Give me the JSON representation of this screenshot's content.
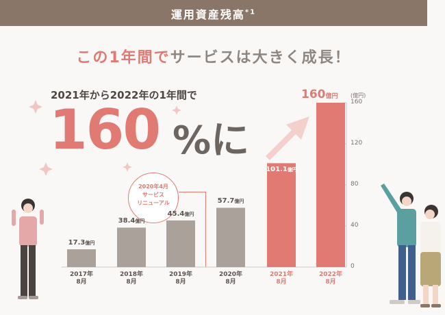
{
  "header": {
    "title": "運用資産残高",
    "footnote": "*1"
  },
  "headline": {
    "part1": "この1年間で",
    "part2": "サービスは大きく成長！"
  },
  "hero": {
    "subtitle": "2021年から2022年の1年間で",
    "percent": "160",
    "percent_suffix": "%に"
  },
  "annotation": {
    "line1": "2020年4月",
    "line2": "サービス",
    "line3": "リニューアル"
  },
  "highlight_value": "160",
  "highlight_unit": "億円",
  "colors": {
    "grey": "#aaa19a",
    "red": "#e07a72",
    "header": "#8a7569"
  },
  "chart_data": {
    "type": "bar",
    "categories": [
      "2017年8月",
      "2018年8月",
      "2019年8月",
      "2020年8月",
      "2021年8月",
      "2022年8月"
    ],
    "category_lines": [
      [
        "2017年",
        "8月"
      ],
      [
        "2018年",
        "8月"
      ],
      [
        "2019年",
        "8月"
      ],
      [
        "2020年",
        "8月"
      ],
      [
        "2021年",
        "8月"
      ],
      [
        "2022年",
        "8月"
      ]
    ],
    "values": [
      17.3,
      38.4,
      45.4,
      57.7,
      101.1,
      160
    ],
    "value_labels": [
      "17.3",
      "38.4",
      "45.4",
      "57.7",
      "101.1",
      ""
    ],
    "value_unit": "億円",
    "highlighted": [
      false,
      false,
      false,
      false,
      true,
      true
    ],
    "ylim": [
      0,
      160
    ],
    "yticks": [
      0,
      40,
      80,
      120,
      160
    ],
    "ylabel_unit": "(億円)",
    "axis_side": "right",
    "grid": false
  }
}
